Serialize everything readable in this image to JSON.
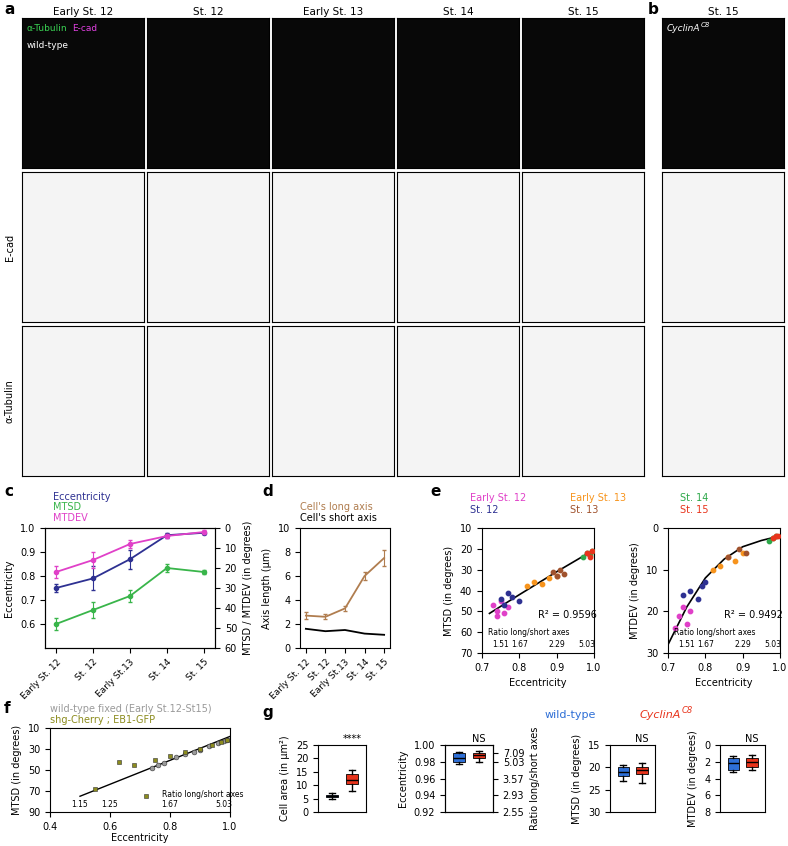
{
  "images": {
    "panels": [
      "a",
      "b"
    ],
    "columns": [
      "Early St. 12",
      "St. 12",
      "Early St. 13",
      "St. 14",
      "St. 15"
    ],
    "b_column": "St. 15",
    "genotype_a": "wild-type",
    "genotype_b": {
      "name": "CyclinA",
      "superscript": "C8"
    },
    "stain_labels": [
      "α-Tubulin",
      "E-cad"
    ],
    "stain_colors": [
      "#39d353",
      "#e040e0"
    ],
    "row_labels": [
      "E-cad",
      "α-Tubulin"
    ]
  },
  "chart_data": [
    {
      "panel": "c",
      "type": "line",
      "categories": [
        "Early St. 12",
        "St. 12",
        "Early St.13",
        "St. 14",
        "St. 15"
      ],
      "ylabel": "Eccentricity",
      "ylim": [
        0.5,
        1.0
      ],
      "yticks": [
        0.6,
        0.7,
        0.8,
        0.9,
        1.0
      ],
      "y2label": "MTSD / MTDEV (in degrees)",
      "y2lim": [
        60,
        0
      ],
      "y2ticks": [
        0,
        10,
        20,
        30,
        40,
        50,
        60
      ],
      "series": [
        {
          "name": "Eccentricity",
          "color": "#2e3192",
          "marker": "o",
          "values": [
            0.75,
            0.79,
            0.87,
            0.97,
            0.98
          ],
          "errors": [
            0.015,
            0.05,
            0.04,
            0.01,
            0.005
          ]
        },
        {
          "name": "MTSD",
          "color": "#39b54a",
          "marker": "o",
          "axis": "y2",
          "values": [
            48,
            41,
            34,
            20,
            22
          ],
          "errors": [
            3,
            4,
            3,
            2,
            1
          ]
        },
        {
          "name": "MTDEV",
          "color": "#e040c8",
          "marker": "o",
          "axis": "y2",
          "values": [
            22,
            16,
            8,
            4,
            2
          ],
          "errors": [
            3,
            4,
            2,
            1,
            1
          ]
        }
      ]
    },
    {
      "panel": "d",
      "type": "line",
      "categories": [
        "Early St. 12",
        "St. 12",
        "Early St.13",
        "St. 14",
        "St. 15"
      ],
      "ylabel": "Axis length (μm)",
      "ylim": [
        0,
        10
      ],
      "yticks": [
        0,
        2,
        4,
        6,
        8,
        10
      ],
      "series": [
        {
          "name": "Cell's long axis",
          "color": "#b07d4f",
          "values": [
            2.7,
            2.6,
            3.3,
            6.0,
            7.5
          ],
          "errors": [
            0.3,
            0.2,
            0.2,
            0.3,
            0.7
          ]
        },
        {
          "name": "Cell's short axis",
          "color": "#000000",
          "values": [
            1.6,
            1.4,
            1.5,
            1.2,
            1.1
          ]
        }
      ]
    },
    {
      "panel": "e",
      "type": "scatter",
      "marker": "o",
      "stages": [
        {
          "name": "Early St. 12",
          "color": "#e040c8"
        },
        {
          "name": "St. 12",
          "color": "#2e3192"
        },
        {
          "name": "Early St. 13",
          "color": "#f7941d"
        },
        {
          "name": "St. 13",
          "color": "#a0522d"
        },
        {
          "name": "St. 14",
          "color": "#2ea84a"
        },
        {
          "name": "St. 15",
          "color": "#e8341c"
        }
      ],
      "subplots": [
        {
          "xlabel": "Eccentricity",
          "ylabel": "MTSD (in degrees)",
          "xlim": [
            0.7,
            1.0
          ],
          "xticks": [
            0.7,
            0.8,
            0.9,
            1.0
          ],
          "ylim": [
            70,
            10
          ],
          "yticks": [
            10,
            20,
            30,
            40,
            50,
            60,
            70
          ],
          "annotation": "R² = 0.9596",
          "ratio_label": "Ratio long/short axes",
          "ratio_ticks": [
            {
              "value": 0.75,
              "label": "1.51"
            },
            {
              "value": 0.8,
              "label": "1.67"
            },
            {
              "value": 0.9,
              "label": "2.29"
            },
            {
              "value": 0.98,
              "label": "5.03"
            }
          ],
          "x": [
            [
              0.73,
              0.74,
              0.75,
              0.76,
              0.77,
              0.74
            ],
            [
              0.75,
              0.76,
              0.78,
              0.8,
              0.77
            ],
            [
              0.82,
              0.84,
              0.86,
              0.88,
              0.9
            ],
            [
              0.89,
              0.9,
              0.91,
              0.92
            ],
            [
              0.97,
              0.98,
              0.99,
              0.995
            ],
            [
              0.98,
              0.99,
              0.995
            ]
          ],
          "y": [
            [
              47,
              50,
              45,
              51,
              48,
              52
            ],
            [
              44,
              47,
              43,
              45,
              41
            ],
            [
              38,
              36,
              37,
              34,
              33
            ],
            [
              31,
              33,
              30,
              32
            ],
            [
              24,
              22,
              23,
              21
            ],
            [
              22,
              24,
              21
            ]
          ],
          "fit_x": [
            0.72,
            0.8,
            0.9,
            0.995
          ],
          "fit_y": [
            51,
            42,
            31,
            21
          ]
        },
        {
          "xlabel": "Eccentricity",
          "ylabel": "MTDEV (in degrees)",
          "xlim": [
            0.7,
            1.0
          ],
          "xticks": [
            0.7,
            0.8,
            0.9,
            1.0
          ],
          "ylim": [
            30,
            0
          ],
          "yticks": [
            0,
            10,
            20,
            30
          ],
          "annotation": "R² = 0.9492",
          "ratio_label": "Ratio long/short axes",
          "ratio_ticks": [
            {
              "value": 0.75,
              "label": "1.51"
            },
            {
              "value": 0.8,
              "label": "1.67"
            },
            {
              "value": 0.9,
              "label": "2.29"
            },
            {
              "value": 0.98,
              "label": "5.03"
            }
          ],
          "x": [
            [
              0.72,
              0.73,
              0.74,
              0.75,
              0.76
            ],
            [
              0.74,
              0.76,
              0.78,
              0.79,
              0.8
            ],
            [
              0.82,
              0.84,
              0.86,
              0.88,
              0.9
            ],
            [
              0.86,
              0.89,
              0.91
            ],
            [
              0.97,
              0.98,
              0.99
            ],
            [
              0.98,
              0.99,
              0.995
            ]
          ],
          "y": [
            [
              24,
              21,
              19,
              23,
              20
            ],
            [
              16,
              15,
              17,
              14,
              13
            ],
            [
              10,
              9,
              7,
              8,
              6
            ],
            [
              7,
              5,
              6
            ],
            [
              3,
              2.5,
              2
            ],
            [
              2.5,
              2,
              2
            ]
          ],
          "fit_x": [
            0.7,
            0.75,
            0.8,
            0.85,
            0.9,
            0.95,
            0.995
          ],
          "fit_y": [
            28,
            19,
            12,
            7.5,
            4.5,
            3,
            2
          ]
        }
      ]
    },
    {
      "panel": "f",
      "type": "scatter",
      "xlabel": "Eccentricity",
      "ylabel": "MTSD (in degrees)",
      "xlim": [
        0.4,
        1.0
      ],
      "xticks": [
        0.4,
        0.6,
        0.8,
        1.0
      ],
      "ylim": [
        90,
        10
      ],
      "yticks": [
        10,
        30,
        50,
        70,
        90
      ],
      "ratio_label": "Ratio long/short axes",
      "ratio_ticks": [
        {
          "value": 0.5,
          "label": "1.15"
        },
        {
          "value": 0.6,
          "label": "1.25"
        },
        {
          "value": 0.8,
          "label": "1.67"
        },
        {
          "value": 0.98,
          "label": "5.03"
        }
      ],
      "series": [
        {
          "name": "wild-type fixed (Early St.12-St15)",
          "color": "#9a9a9a",
          "marker": "o",
          "x": [
            0.74,
            0.76,
            0.78,
            0.82,
            0.85,
            0.88,
            0.9,
            0.93,
            0.96,
            0.98,
            0.99
          ],
          "y": [
            48,
            45,
            43,
            38,
            35,
            33,
            31,
            27,
            24,
            22,
            21
          ]
        },
        {
          "name": "shg-Cherry ; EB1-GFP",
          "color": "#8c8c1e",
          "marker": "s",
          "x": [
            0.55,
            0.63,
            0.68,
            0.72,
            0.75,
            0.8,
            0.85,
            0.9,
            0.94,
            0.97,
            0.99
          ],
          "y": [
            68,
            42,
            45,
            75,
            40,
            37,
            33,
            30,
            26,
            23,
            21
          ]
        }
      ],
      "fit_x": [
        0.5,
        1.0
      ],
      "fit_y": [
        75,
        18
      ]
    },
    {
      "panel": "g",
      "type": "box",
      "groups": [
        {
          "name": "wild-type",
          "color": "#2e6fd6"
        },
        {
          "name": "CyclinA",
          "superscript": "C8",
          "color": "#e8341c"
        }
      ],
      "subplots": [
        {
          "ylabel": "Cell area (in μm²)",
          "ylim": [
            0,
            25
          ],
          "yticks": [
            0,
            5,
            10,
            15,
            20,
            25
          ],
          "annotation": "****",
          "boxes": [
            {
              "min": 5,
              "q1": 5.5,
              "median": 6,
              "q3": 6.5,
              "max": 7
            },
            {
              "min": 8,
              "q1": 10.5,
              "median": 12,
              "q3": 14,
              "max": 15.5
            }
          ]
        },
        {
          "ylabel": "Eccentricity",
          "ylim": [
            0.92,
            1.0
          ],
          "yticks": [
            0.92,
            0.94,
            0.96,
            0.98,
            {
              "value": 1.0,
              "label": "1.00"
            }
          ],
          "annotation": "NS",
          "y2label": "Ratio long/short axes",
          "y2lim": [
            0.92,
            1.0
          ],
          "y2ticks": [
            {
              "value": 0.92,
              "label": "2.55"
            },
            {
              "value": 0.94,
              "label": "2.93"
            },
            {
              "value": 0.96,
              "label": "3.57"
            },
            {
              "value": 0.98,
              "label": "5.03"
            },
            {
              "value": 0.99,
              "label": "7.09"
            }
          ],
          "boxes": [
            {
              "min": 0.977,
              "q1": 0.98,
              "median": 0.985,
              "q3": 0.99,
              "max": 0.992
            },
            {
              "min": 0.98,
              "q1": 0.985,
              "median": 0.988,
              "q3": 0.99,
              "max": 0.993
            }
          ]
        },
        {
          "ylabel": "MTSD (in degrees)",
          "ylim": [
            30,
            15
          ],
          "yticks": [
            15,
            20,
            25,
            30
          ],
          "annotation": "NS",
          "boxes": [
            {
              "min": 19.5,
              "q1": 20,
              "median": 21,
              "q3": 22,
              "max": 23
            },
            {
              "min": 19,
              "q1": 20,
              "median": 20.5,
              "q3": 21.5,
              "max": 23.5
            }
          ]
        },
        {
          "ylabel": "MTDEV (in degrees)",
          "ylim": [
            8,
            0
          ],
          "yticks": [
            0,
            2,
            4,
            6,
            8
          ],
          "annotation": "NS",
          "boxes": [
            {
              "min": 1.3,
              "q1": 1.5,
              "median": 2.2,
              "q3": 3,
              "max": 3.2
            },
            {
              "min": 1.2,
              "q1": 1.5,
              "median": 2,
              "q3": 2.6,
              "max": 3
            }
          ]
        }
      ]
    }
  ]
}
